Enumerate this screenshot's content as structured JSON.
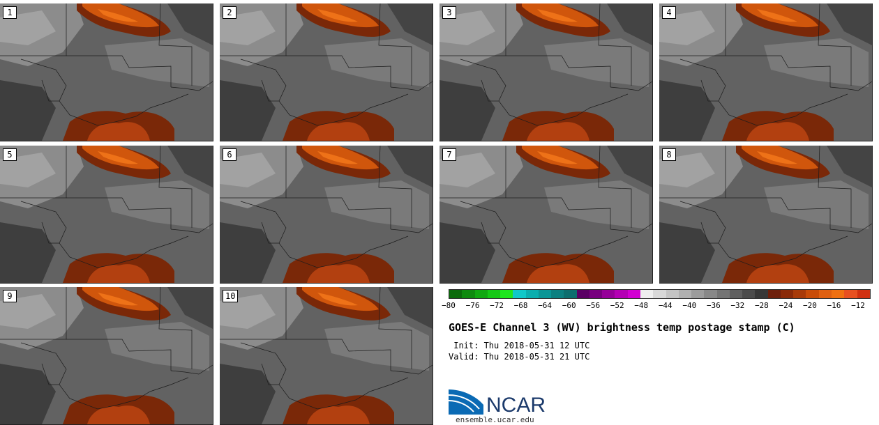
{
  "panels": [
    {
      "label": "1"
    },
    {
      "label": "2"
    },
    {
      "label": "3"
    },
    {
      "label": "4"
    },
    {
      "label": "5"
    },
    {
      "label": "6"
    },
    {
      "label": "7"
    },
    {
      "label": "8"
    },
    {
      "label": "9"
    },
    {
      "label": "10"
    }
  ],
  "colorbar": {
    "colors": [
      "#0b6b0b",
      "#0e8a0e",
      "#10a810",
      "#14c814",
      "#1ee61e",
      "#0fc8c8",
      "#0aaeae",
      "#0a9696",
      "#0c8080",
      "#0d6e6e",
      "#5a0064",
      "#78007f",
      "#960099",
      "#b400b4",
      "#d200d2",
      "#eeeeee",
      "#d8d8d8",
      "#c4c4c4",
      "#b0b0b0",
      "#9c9c9c",
      "#888888",
      "#747474",
      "#606060",
      "#4c4c4c",
      "#383838",
      "#6e200c",
      "#8a2a08",
      "#a83a08",
      "#c84c08",
      "#e06010",
      "#f07010",
      "#e85020",
      "#d03010"
    ],
    "tick_labels": [
      "−80",
      "−76",
      "−72",
      "−68",
      "−64",
      "−60",
      "−56",
      "−52",
      "−48",
      "−44",
      "−40",
      "−36",
      "−32",
      "−28",
      "−24",
      "−20",
      "−16",
      "−12"
    ],
    "min": -80,
    "max": -12
  },
  "title": "GOES-E Channel 3 (WV) brightness temp postage stamp (C)",
  "init_line": " Init: Thu 2018-05-31 12 UTC",
  "valid_line": "Valid: Thu 2018-05-31 21 UTC",
  "logo": {
    "text": "NCAR",
    "accent": "#0a6ab4"
  },
  "url": "ensemble.ucar.edu"
}
